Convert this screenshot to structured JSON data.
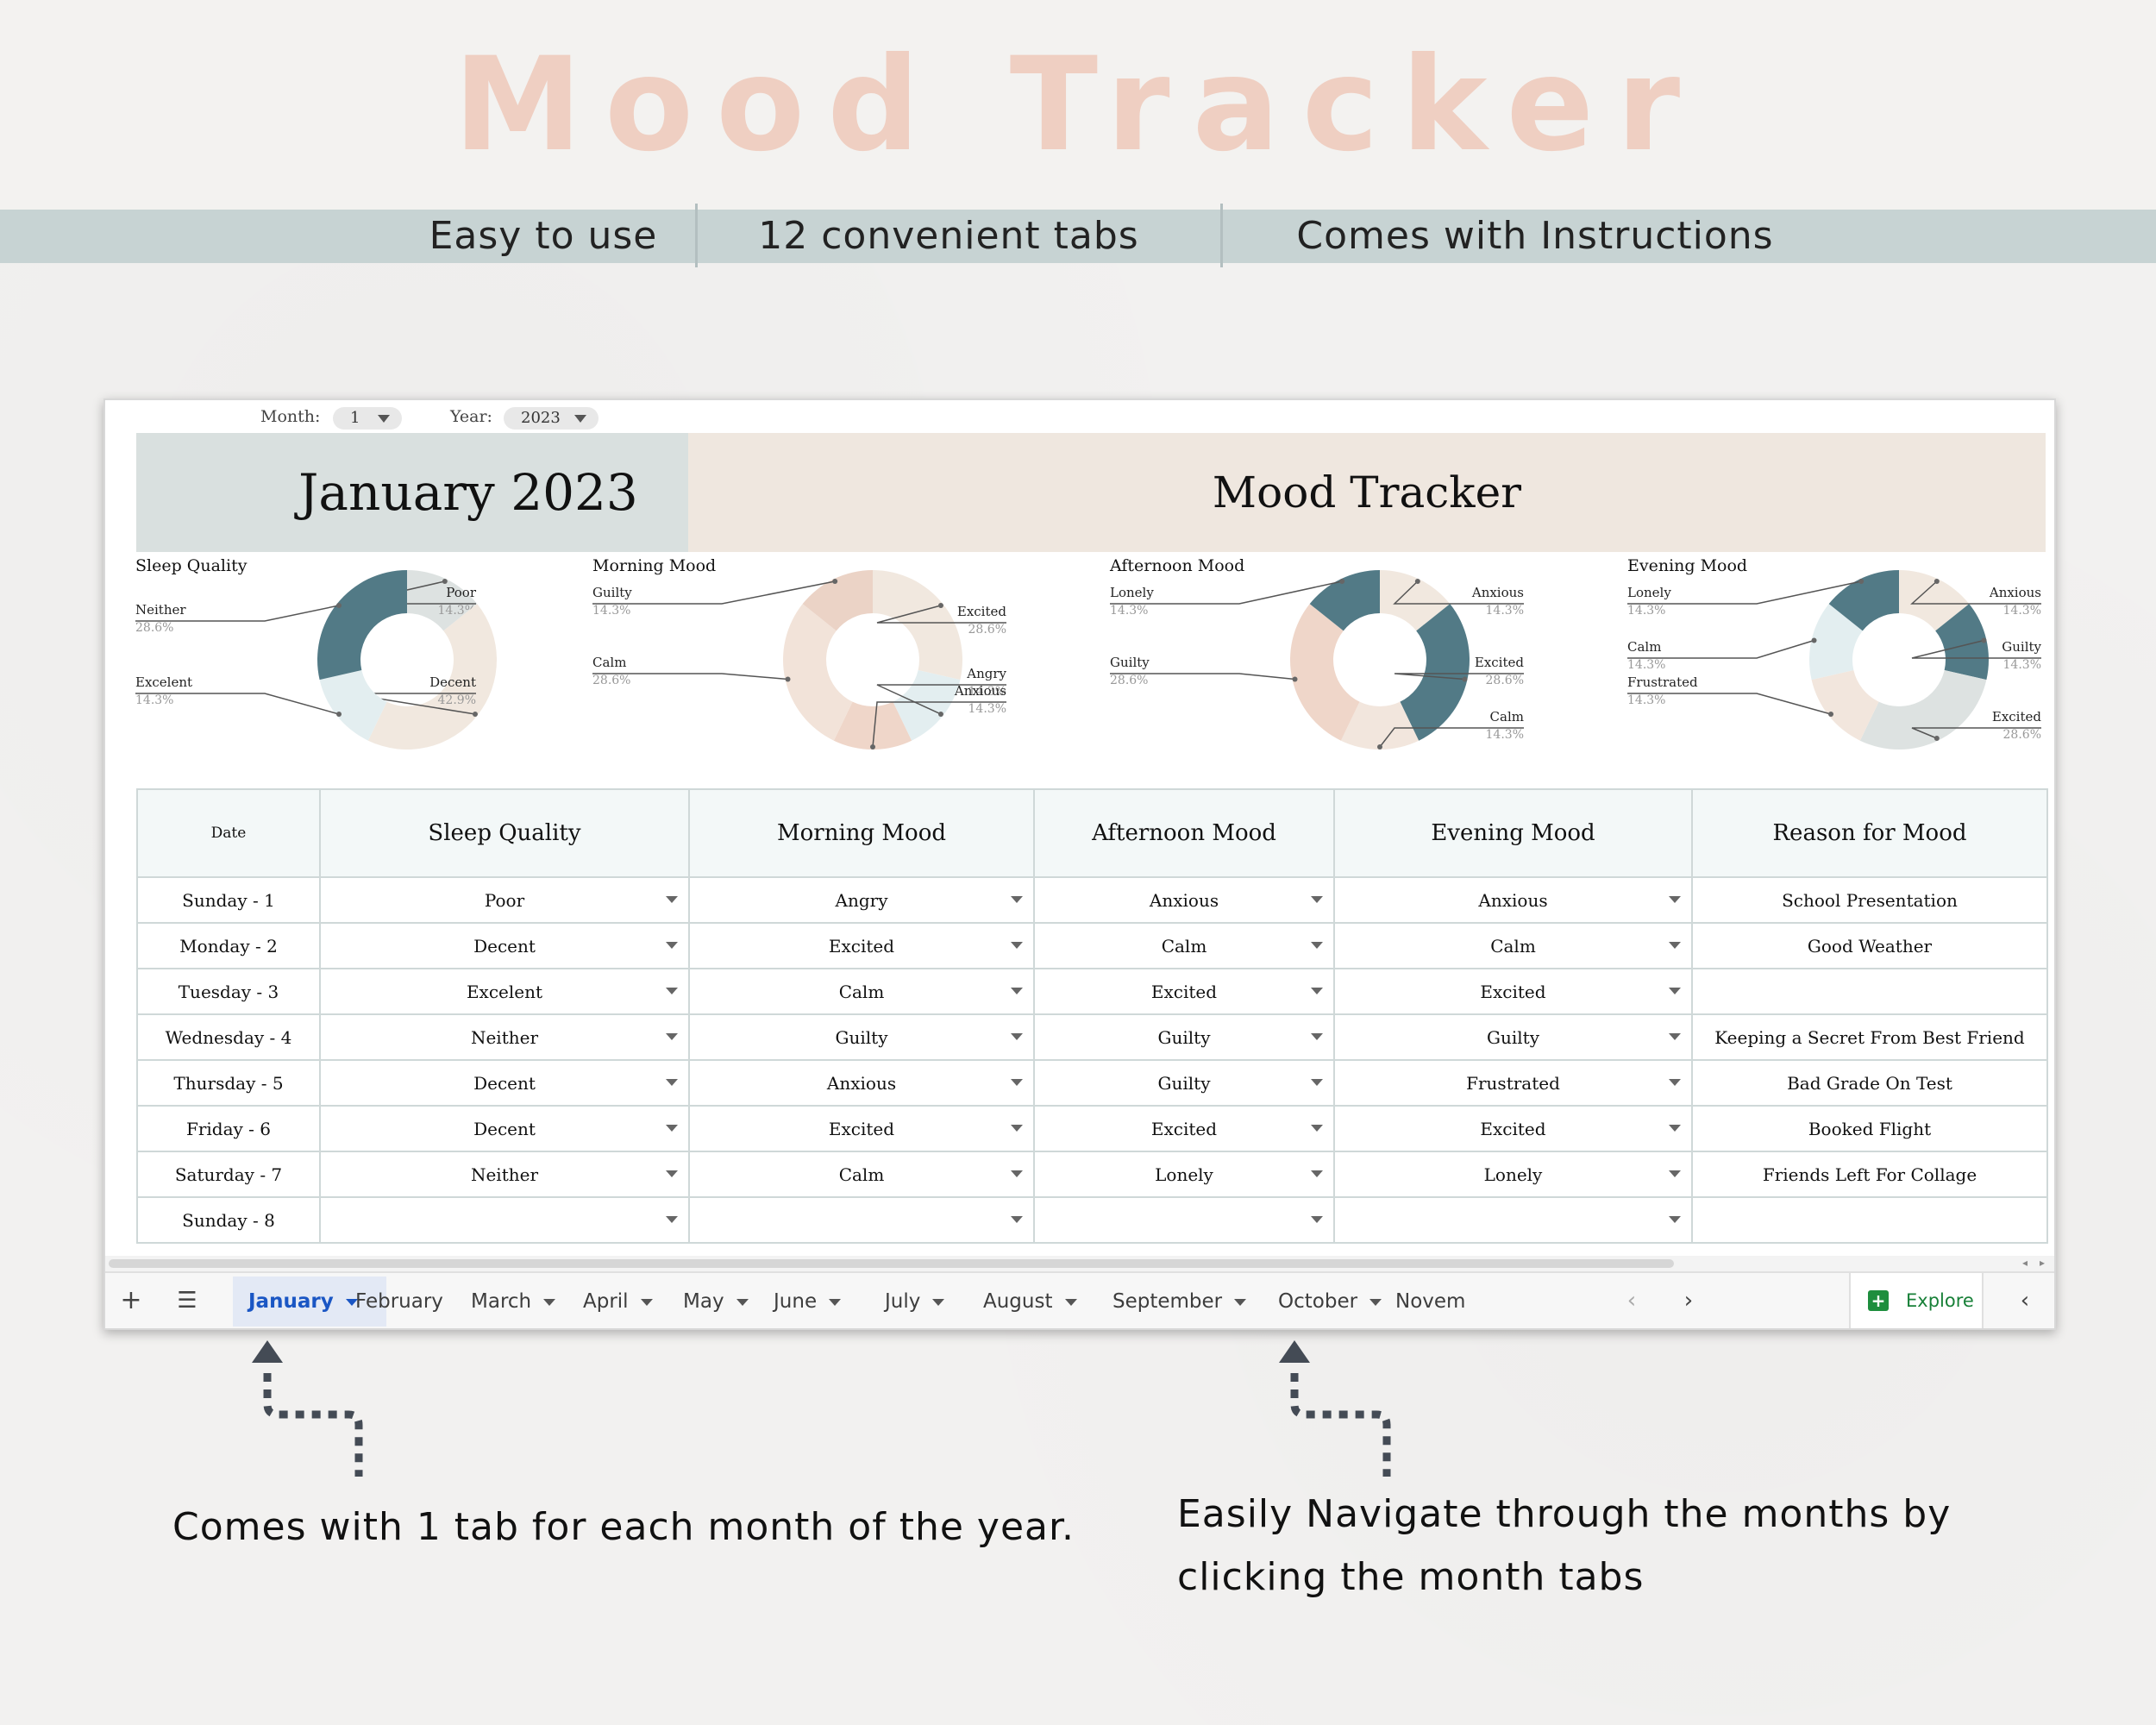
{
  "hero": {
    "title": "Mood Tracker",
    "features": [
      "Easy to use",
      "12 convenient tabs",
      "Comes with Instructions"
    ]
  },
  "sheet": {
    "month_label": "Month:",
    "month_value": "1",
    "year_label": "Year:",
    "year_value": "2023",
    "banner_month": "January 2023",
    "banner_title": "Mood Tracker",
    "columns": [
      "Date",
      "Sleep Quality",
      "Morning Mood",
      "Afternoon Mood",
      "Evening Mood",
      "Reason for Mood"
    ],
    "rows": [
      {
        "date": "Sunday - 1",
        "sleep": "Poor",
        "morning": "Angry",
        "afternoon": "Anxious",
        "evening": "Anxious",
        "reason": "School Presentation"
      },
      {
        "date": "Monday - 2",
        "sleep": "Decent",
        "morning": "Excited",
        "afternoon": "Calm",
        "evening": "Calm",
        "reason": "Good Weather"
      },
      {
        "date": "Tuesday - 3",
        "sleep": "Excelent",
        "morning": "Calm",
        "afternoon": "Excited",
        "evening": "Excited",
        "reason": ""
      },
      {
        "date": "Wednesday - 4",
        "sleep": "Neither",
        "morning": "Guilty",
        "afternoon": "Guilty",
        "evening": "Guilty",
        "reason": "Keeping a Secret From Best Friend"
      },
      {
        "date": "Thursday - 5",
        "sleep": "Decent",
        "morning": "Anxious",
        "afternoon": "Guilty",
        "evening": "Frustrated",
        "reason": "Bad Grade On Test"
      },
      {
        "date": "Friday - 6",
        "sleep": "Decent",
        "morning": "Excited",
        "afternoon": "Excited",
        "evening": "Excited",
        "reason": "Booked Flight"
      },
      {
        "date": "Saturday - 7",
        "sleep": "Neither",
        "morning": "Calm",
        "afternoon": "Lonely",
        "evening": "Lonely",
        "reason": "Friends Left For Collage"
      },
      {
        "date": "Sunday - 8",
        "sleep": "",
        "morning": "",
        "afternoon": "",
        "evening": "",
        "reason": ""
      }
    ],
    "tabs": [
      "January",
      "February",
      "March",
      "April",
      "May",
      "June",
      "July",
      "August",
      "September",
      "October",
      "Novem"
    ],
    "active_tab": "January",
    "explore_label": "Explore"
  },
  "annotations": {
    "left": "Comes with 1 tab for each month of the year.",
    "right_line1": "Easily Navigate through the months by",
    "right_line2": "clicking the month tabs"
  },
  "colors": {
    "dark_teal": "#527a86",
    "light_blue": "#e3eef0",
    "beige": "#f1e8df",
    "grey": "#dde2e1",
    "peach": "#efd6c9",
    "light_peach": "#f2dfd4"
  },
  "chart_data": [
    {
      "type": "pie",
      "title": "Sleep Quality",
      "slices": [
        {
          "label": "Poor",
          "value": 14.3,
          "display": "14.3%",
          "color": "#dde2e1"
        },
        {
          "label": "Decent",
          "value": 42.9,
          "display": "42.9%",
          "color": "#f1e8df"
        },
        {
          "label": "Excelent",
          "value": 14.3,
          "display": "14.3%",
          "color": "#e3eef0"
        },
        {
          "label": "Neither",
          "value": 28.6,
          "display": "28.6%",
          "color": "#527a86"
        }
      ]
    },
    {
      "type": "pie",
      "title": "Morning Mood",
      "slices": [
        {
          "label": "Excited",
          "value": 28.6,
          "display": "28.6%",
          "color": "#f1e8df"
        },
        {
          "label": "Angry",
          "value": 14.3,
          "display": "14.3%",
          "color": "#e3eef0"
        },
        {
          "label": "Anxious",
          "value": 14.3,
          "display": "14.3%",
          "color": "#efd6c9"
        },
        {
          "label": "Calm",
          "value": 28.6,
          "display": "28.6%",
          "color": "#f2e3d9"
        },
        {
          "label": "Guilty",
          "value": 14.3,
          "display": "14.3%",
          "color": "#ebd3c6"
        }
      ]
    },
    {
      "type": "pie",
      "title": "Afternoon Mood",
      "slices": [
        {
          "label": "Anxious",
          "value": 14.3,
          "display": "14.3%",
          "color": "#f1e8df"
        },
        {
          "label": "Excited",
          "value": 28.6,
          "display": "28.6%",
          "color": "#527a86"
        },
        {
          "label": "Calm",
          "value": 14.3,
          "display": "14.3%",
          "color": "#f2e6dd"
        },
        {
          "label": "Guilty",
          "value": 28.6,
          "display": "28.6%",
          "color": "#efd6c9"
        },
        {
          "label": "Lonely",
          "value": 14.3,
          "display": "14.3%",
          "color": "#527a86"
        }
      ]
    },
    {
      "type": "pie",
      "title": "Evening Mood",
      "slices": [
        {
          "label": "Anxious",
          "value": 14.3,
          "display": "14.3%",
          "color": "#f1e8df"
        },
        {
          "label": "Guilty",
          "value": 14.3,
          "display": "14.3%",
          "color": "#527a86"
        },
        {
          "label": "Excited",
          "value": 28.6,
          "display": "28.6%",
          "color": "#dde2e1"
        },
        {
          "label": "Frustrated",
          "value": 14.3,
          "display": "14.3%",
          "color": "#f2e6dd"
        },
        {
          "label": "Calm",
          "value": 14.3,
          "display": "14.3%",
          "color": "#e3eef0"
        },
        {
          "label": "Lonely",
          "value": 14.3,
          "display": "14.3%",
          "color": "#527a86"
        }
      ]
    }
  ]
}
